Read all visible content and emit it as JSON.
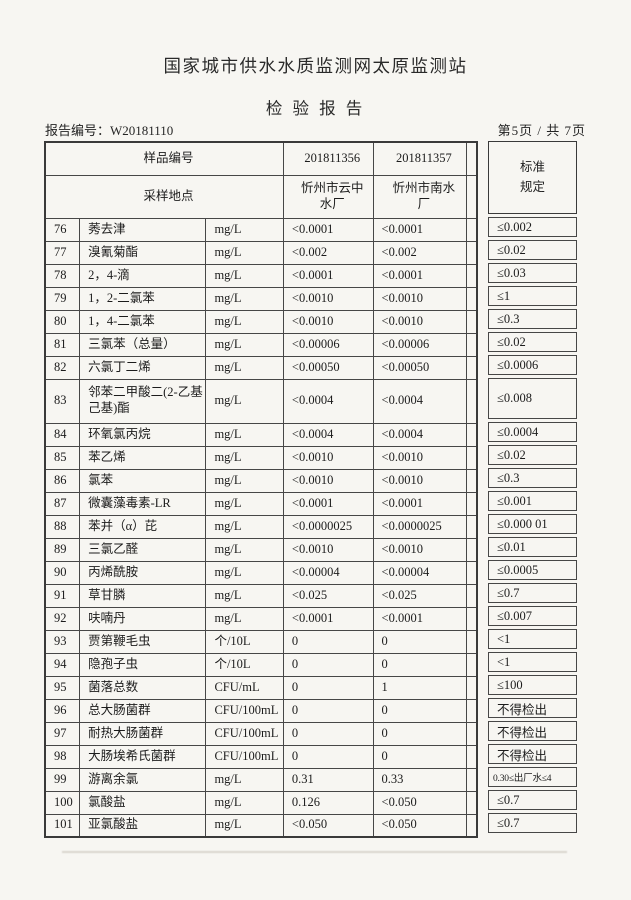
{
  "page_header": {
    "title": "国家城市供水水质监测网太原监测站",
    "subtitle": "检 验 报 告",
    "report_no": "报告编号：W20181110",
    "page_indicator": "第5页 / 共 7页"
  },
  "table": {
    "header": {
      "sample_id_label": "样品编号",
      "sample_ids": [
        "201811356",
        "201811357"
      ],
      "location_label": "采样地点",
      "locations": [
        "忻州市云中水厂",
        "忻州市南水厂"
      ],
      "standard_label": [
        "标准",
        "规定"
      ]
    },
    "rows": [
      {
        "no": "76",
        "name": "莠去津",
        "unit": "mg/L",
        "values": [
          "<0.0001",
          "<0.0001"
        ],
        "standard": "≤0.002"
      },
      {
        "no": "77",
        "name": "溴氰菊酯",
        "unit": "mg/L",
        "values": [
          "<0.002",
          "<0.002"
        ],
        "standard": "≤0.02"
      },
      {
        "no": "78",
        "name": "2，4-滴",
        "unit": "mg/L",
        "values": [
          "<0.0001",
          "<0.0001"
        ],
        "standard": "≤0.03"
      },
      {
        "no": "79",
        "name": "1，2-二氯苯",
        "unit": "mg/L",
        "values": [
          "<0.0010",
          "<0.0010"
        ],
        "standard": "≤1"
      },
      {
        "no": "80",
        "name": "1，4-二氯苯",
        "unit": "mg/L",
        "values": [
          "<0.0010",
          "<0.0010"
        ],
        "standard": "≤0.3"
      },
      {
        "no": "81",
        "name": "三氯苯（总量）",
        "unit": "mg/L",
        "values": [
          "<0.00006",
          "<0.00006"
        ],
        "standard": "≤0.02"
      },
      {
        "no": "82",
        "name": "六氯丁二烯",
        "unit": "mg/L",
        "values": [
          "<0.00050",
          "<0.00050"
        ],
        "standard": "≤0.0006"
      },
      {
        "no": "83",
        "name": "邻苯二甲酸二(2-乙基己基)酯",
        "unit": "mg/L",
        "values": [
          "<0.0004",
          "<0.0004"
        ],
        "standard": "≤0.008",
        "tall": true
      },
      {
        "no": "84",
        "name": "环氧氯丙烷",
        "unit": "mg/L",
        "values": [
          "<0.0004",
          "<0.0004"
        ],
        "standard": "≤0.0004"
      },
      {
        "no": "85",
        "name": "苯乙烯",
        "unit": "mg/L",
        "values": [
          "<0.0010",
          "<0.0010"
        ],
        "standard": "≤0.02"
      },
      {
        "no": "86",
        "name": "氯苯",
        "unit": "mg/L",
        "values": [
          "<0.0010",
          "<0.0010"
        ],
        "standard": "≤0.3"
      },
      {
        "no": "87",
        "name": "微囊藻毒素-LR",
        "unit": "mg/L",
        "values": [
          "<0.0001",
          "<0.0001"
        ],
        "standard": "≤0.001"
      },
      {
        "no": "88",
        "name": "苯并（α）芘",
        "unit": "mg/L",
        "values": [
          "<0.0000025",
          "<0.0000025"
        ],
        "standard": "≤0.000 01"
      },
      {
        "no": "89",
        "name": "三氯乙醛",
        "unit": "mg/L",
        "values": [
          "<0.0010",
          "<0.0010"
        ],
        "standard": "≤0.01"
      },
      {
        "no": "90",
        "name": "丙烯酰胺",
        "unit": "mg/L",
        "values": [
          "<0.00004",
          "<0.00004"
        ],
        "standard": "≤0.0005"
      },
      {
        "no": "91",
        "name": "草甘膦",
        "unit": "mg/L",
        "values": [
          "<0.025",
          "<0.025"
        ],
        "standard": "≤0.7"
      },
      {
        "no": "92",
        "name": "呋喃丹",
        "unit": "mg/L",
        "values": [
          "<0.0001",
          "<0.0001"
        ],
        "standard": "≤0.007"
      },
      {
        "no": "93",
        "name": "贾第鞭毛虫",
        "unit": "个/10L",
        "values": [
          "0",
          "0"
        ],
        "standard": "<1"
      },
      {
        "no": "94",
        "name": "隐孢子虫",
        "unit": "个/10L",
        "values": [
          "0",
          "0"
        ],
        "standard": "<1"
      },
      {
        "no": "95",
        "name": "菌落总数",
        "unit": "CFU/mL",
        "values": [
          "0",
          "1"
        ],
        "standard": "≤100"
      },
      {
        "no": "96",
        "name": "总大肠菌群",
        "unit": "CFU/100mL",
        "values": [
          "0",
          "0"
        ],
        "standard": "不得检出"
      },
      {
        "no": "97",
        "name": "耐热大肠菌群",
        "unit": "CFU/100mL",
        "values": [
          "0",
          "0"
        ],
        "standard": "不得检出"
      },
      {
        "no": "98",
        "name": "大肠埃希氏菌群",
        "unit": "CFU/100mL",
        "values": [
          "0",
          "0"
        ],
        "standard": "不得检出"
      },
      {
        "no": "99",
        "name": "游离余氯",
        "unit": "mg/L",
        "values": [
          "0.31",
          "0.33"
        ],
        "standard": "0.30≤出厂水≤4",
        "small_std": true
      },
      {
        "no": "100",
        "name": "氯酸盐",
        "unit": "mg/L",
        "values": [
          "0.126",
          "<0.050"
        ],
        "standard": "≤0.7"
      },
      {
        "no": "101",
        "name": "亚氯酸盐",
        "unit": "mg/L",
        "values": [
          "<0.050",
          "<0.050"
        ],
        "standard": "≤0.7"
      }
    ]
  }
}
